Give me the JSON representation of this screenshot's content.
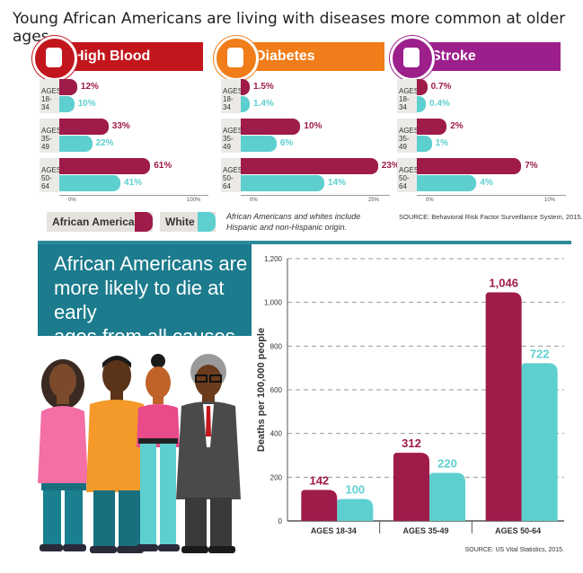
{
  "headline": "Young African Americans are living with diseases more common at older ages.",
  "panels": [
    {
      "title": "High Blood Pressure",
      "color": "#c2161c",
      "icon": "blood-pressure-icon",
      "axis": [
        "0%",
        "100%"
      ],
      "max": 100,
      "rows": [
        {
          "age": [
            "AGES",
            "18-34"
          ],
          "aa": 12,
          "w": 10,
          "aa_label": "12%",
          "w_label": "10%"
        },
        {
          "age": [
            "AGES",
            "35-49"
          ],
          "aa": 33,
          "w": 22,
          "aa_label": "33%",
          "w_label": "22%"
        },
        {
          "age": [
            "AGES",
            "50-64"
          ],
          "aa": 61,
          "w": 41,
          "aa_label": "61%",
          "w_label": "41%"
        }
      ]
    },
    {
      "title": "Diabetes",
      "color": "#f07d19",
      "icon": "glucose-meter-icon",
      "axis": [
        "0%",
        "25%"
      ],
      "max": 25,
      "rows": [
        {
          "age": [
            "AGES",
            "18-34"
          ],
          "aa": 1.5,
          "w": 1.4,
          "aa_label": "1.5%",
          "w_label": "1.4%"
        },
        {
          "age": [
            "AGES",
            "35-49"
          ],
          "aa": 10,
          "w": 6,
          "aa_label": "10%",
          "w_label": "6%"
        },
        {
          "age": [
            "AGES",
            "50-64"
          ],
          "aa": 23,
          "w": 14,
          "aa_label": "23%",
          "w_label": "14%"
        }
      ]
    },
    {
      "title": "Stroke",
      "color": "#9c1f8c",
      "icon": "brain-icon",
      "axis": [
        "0%",
        "10%"
      ],
      "max": 10,
      "rows": [
        {
          "age": [
            "AGES",
            "18-34"
          ],
          "aa": 0.7,
          "w": 0.4,
          "aa_label": "0.7%",
          "w_label": "0.4%"
        },
        {
          "age": [
            "AGES",
            "35-49"
          ],
          "aa": 2,
          "w": 1,
          "aa_label": "2%",
          "w_label": "1%"
        },
        {
          "age": [
            "AGES",
            "50-64"
          ],
          "aa": 7,
          "w": 4,
          "aa_label": "7%",
          "w_label": "4%"
        }
      ]
    }
  ],
  "legend": {
    "aa": "African American",
    "w": "White"
  },
  "colors": {
    "aa": "#9e1b4a",
    "w": "#5ecfcf"
  },
  "note": [
    "African Americans and whites include",
    "Hispanic and non-Hispanic origin."
  ],
  "source_top": "SOURCE: Behavioral Risk Factor Surveillance System, 2015.",
  "callout": [
    "African Americans are",
    "more likely to die at early",
    "ages from all causes."
  ],
  "chart_data": {
    "type": "bar",
    "ylabel": "Deaths per 100,000 people",
    "ylim": [
      0,
      1200
    ],
    "yticks": [
      "0",
      "200",
      "400",
      "600",
      "800",
      "1,000",
      "1,200"
    ],
    "categories": [
      "AGES 18-34",
      "AGES 35-49",
      "AGES 50-64"
    ],
    "series": [
      {
        "values": [
          142,
          312,
          1046
        ],
        "labels": [
          "142",
          "312",
          "1,046"
        ]
      },
      {
        "values": [
          100,
          220,
          722
        ],
        "labels": [
          "100",
          "220",
          "722"
        ]
      }
    ],
    "grid": true,
    "source": "SOURCE: US Vital Statistics, 2015."
  }
}
